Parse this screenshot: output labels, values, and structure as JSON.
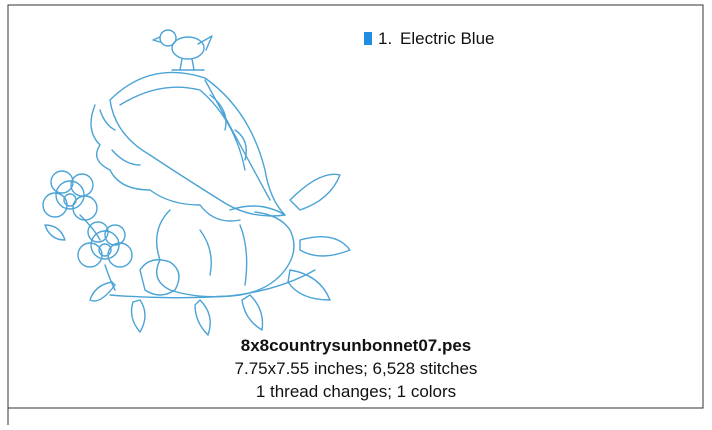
{
  "threads": [
    {
      "number": "1.",
      "name": "Electric Blue",
      "color": "#1f8de0"
    }
  ],
  "design": {
    "filename": "8x8countrysunbonnet07.pes",
    "size_line": "7.75x7.55 inches; 6,528 stitches",
    "changes_line": "1 thread changes; 1 colors"
  }
}
